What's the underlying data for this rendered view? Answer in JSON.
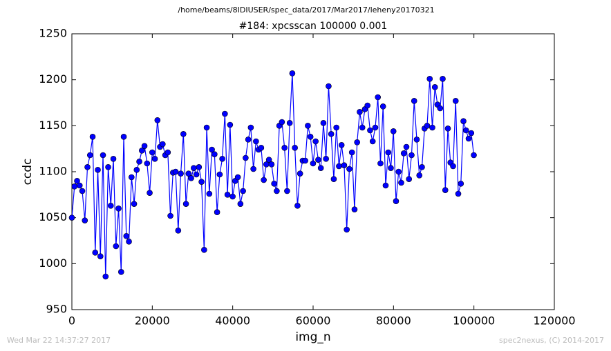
{
  "chart_data": {
    "type": "line",
    "suptitle": "/home/beams/8IDIUSER/spec_data/2017/Mar2017/leheny20170321",
    "title": "#184: xpcsscan 100000 0.001",
    "xlabel": "img_n",
    "ylabel": "ccdc",
    "footer_left": "Wed Mar 22 14:37:27 2017",
    "footer_right": "spec2nexus, (C) 2014-2017",
    "xlim": [
      0,
      120000
    ],
    "xticks": [
      0,
      20000,
      40000,
      60000,
      80000,
      100000,
      120000
    ],
    "ylim": [
      950,
      1250
    ],
    "yticks": [
      950,
      1000,
      1050,
      1100,
      1150,
      1200,
      1250
    ],
    "x": [
      0,
      645,
      1290,
      1935,
      2580,
      3225,
      3870,
      4515,
      5160,
      5805,
      6450,
      7095,
      7740,
      8385,
      9030,
      9675,
      10320,
      10965,
      11610,
      12255,
      12900,
      13545,
      14190,
      14835,
      15480,
      16125,
      16770,
      17415,
      18060,
      18705,
      19350,
      19995,
      20640,
      21285,
      21930,
      22575,
      23220,
      23865,
      24510,
      25155,
      25800,
      26445,
      27090,
      27735,
      28380,
      29025,
      29670,
      30315,
      30960,
      31605,
      32250,
      32895,
      33540,
      34185,
      34830,
      35475,
      36120,
      36765,
      37410,
      38055,
      38700,
      39345,
      39990,
      40635,
      41280,
      41925,
      42570,
      43215,
      43860,
      44505,
      45150,
      45795,
      46440,
      47085,
      47730,
      48375,
      49020,
      49665,
      50310,
      50955,
      51600,
      52245,
      52890,
      53535,
      54180,
      54825,
      55470,
      56115,
      56760,
      57405,
      58050,
      58695,
      59340,
      59985,
      60630,
      61275,
      61920,
      62565,
      63210,
      63855,
      64500,
      65145,
      65790,
      66435,
      67080,
      67725,
      68370,
      69015,
      69660,
      70305,
      70950,
      71595,
      72240,
      72885,
      73530,
      74175,
      74820,
      75465,
      76110,
      76755,
      77400,
      78045,
      78690,
      79335,
      79980,
      80625,
      81270,
      81915,
      82560,
      83205,
      83850,
      84495,
      85140,
      85785,
      86430,
      87075,
      87720,
      88365,
      89010,
      89655,
      90300,
      90945,
      91590,
      92235,
      92880,
      93525,
      94170,
      94815,
      95460,
      96105,
      96750,
      97395,
      98040,
      98685,
      99330,
      99975
    ],
    "series": [
      {
        "name": "ccdc",
        "color": "#0000ff",
        "values": [
          1050,
          1084,
          1090,
          1085,
          1079,
          1047,
          1105,
          1118,
          1138,
          1012,
          1102,
          1008,
          1118,
          986,
          1105,
          1063,
          1114,
          1019,
          1060,
          991,
          1138,
          1030,
          1024,
          1094,
          1065,
          1102,
          1111,
          1123,
          1128,
          1109,
          1077,
          1121,
          1114,
          1156,
          1127,
          1130,
          1118,
          1121,
          1052,
          1099,
          1100,
          1036,
          1098,
          1141,
          1065,
          1098,
          1093,
          1104,
          1097,
          1105,
          1089,
          1015,
          1148,
          1076,
          1124,
          1119,
          1056,
          1097,
          1114,
          1163,
          1075,
          1151,
          1073,
          1090,
          1094,
          1065,
          1079,
          1115,
          1135,
          1148,
          1103,
          1133,
          1124,
          1126,
          1091,
          1108,
          1113,
          1108,
          1087,
          1079,
          1150,
          1154,
          1126,
          1079,
          1153,
          1207,
          1126,
          1063,
          1098,
          1112,
          1112,
          1150,
          1138,
          1109,
          1133,
          1113,
          1104,
          1153,
          1114,
          1193,
          1141,
          1092,
          1148,
          1106,
          1129,
          1107,
          1037,
          1103,
          1121,
          1059,
          1132,
          1165,
          1148,
          1168,
          1172,
          1145,
          1133,
          1148,
          1181,
          1109,
          1171,
          1085,
          1121,
          1104,
          1144,
          1068,
          1100,
          1088,
          1120,
          1127,
          1092,
          1118,
          1177,
          1135,
          1096,
          1105,
          1147,
          1150,
          1201,
          1148,
          1192,
          1173,
          1169,
          1201,
          1080,
          1147,
          1110,
          1106,
          1177,
          1076,
          1087,
          1155,
          1145,
          1136,
          1142,
          1118
        ]
      }
    ]
  }
}
